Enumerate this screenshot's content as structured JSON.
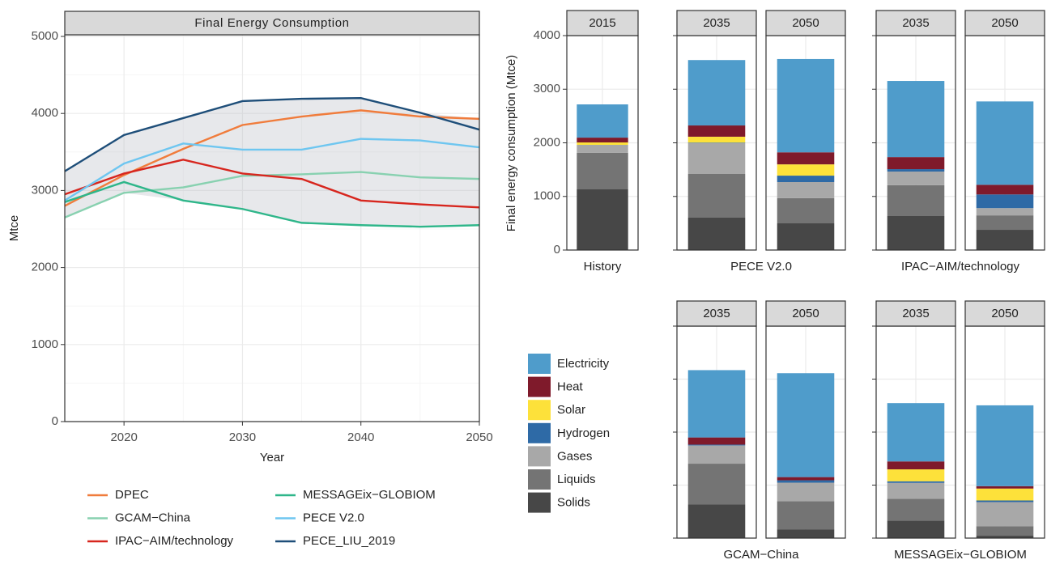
{
  "chart_data": [
    {
      "type": "line",
      "title": "Final Energy Consumption",
      "xlabel": "Year",
      "ylabel": "Mtce",
      "x": [
        2015,
        2020,
        2025,
        2030,
        2035,
        2040,
        2045,
        2050
      ],
      "xlim": [
        2015,
        2050
      ],
      "xticks": [
        2020,
        2030,
        2040,
        2050
      ],
      "ylim": [
        0,
        5000
      ],
      "yticks": [
        0,
        1000,
        2000,
        3000,
        4000,
        5000
      ],
      "grid": true,
      "ribbon": true,
      "series": [
        {
          "name": "DPEC",
          "color": "#f07c3c",
          "values": [
            2800,
            3200,
            3540,
            3850,
            3960,
            4040,
            3960,
            3930
          ]
        },
        {
          "name": "GCAM−China",
          "color": "#88d1b0",
          "values": [
            2650,
            2970,
            3040,
            3190,
            3210,
            3240,
            3170,
            3150
          ]
        },
        {
          "name": "IPAC−AIM/technology",
          "color": "#d7261e",
          "values": [
            2950,
            3220,
            3400,
            3220,
            3150,
            2870,
            2820,
            2780
          ]
        },
        {
          "name": "MESSAGEix−GLOBIOM",
          "color": "#2fb68a",
          "values": [
            2850,
            3110,
            2870,
            2760,
            2580,
            2550,
            2530,
            2550
          ]
        },
        {
          "name": "PECE V2.0",
          "color": "#6ec6f0",
          "values": [
            2870,
            3350,
            3610,
            3530,
            3530,
            3670,
            3650,
            3560
          ]
        },
        {
          "name": "PECE_LIU_2019",
          "color": "#1e4e79",
          "values": [
            3250,
            3720,
            3940,
            4160,
            4190,
            4200,
            4010,
            3790
          ]
        }
      ]
    },
    {
      "type": "bar",
      "stacked": true,
      "ylabel": "Final energy consumption (Mtce)",
      "ylim": [
        0,
        4000
      ],
      "yticks": [
        0,
        1000,
        2000,
        3000,
        4000
      ],
      "grid": true,
      "groups": [
        {
          "name": "History",
          "years": [
            "2015"
          ]
        },
        {
          "name": "PECE V2.0",
          "years": [
            "2035",
            "2050"
          ]
        },
        {
          "name": "IPAC−AIM/technology",
          "years": [
            "2035",
            "2050"
          ]
        },
        {
          "name": "GCAM−China",
          "years": [
            "2035",
            "2050"
          ]
        },
        {
          "name": "MESSAGEix−GLOBIOM",
          "years": [
            "2035",
            "2050"
          ]
        }
      ],
      "series": [
        {
          "name": "Solids",
          "color": "#474747",
          "values": [
            1132,
            604,
            498,
            634,
            377,
            634,
            166,
            332,
            45
          ]
        },
        {
          "name": "Liquids",
          "color": "#747474",
          "values": [
            680,
            815,
            470,
            575,
            270,
            770,
            530,
            410,
            180
          ]
        },
        {
          "name": "Gases",
          "color": "#a8a8a8",
          "values": [
            150,
            575,
            300,
            255,
            135,
            345,
            350,
            300,
            455
          ]
        },
        {
          "name": "Hydrogen",
          "color": "#2e6aa6",
          "values": [
            0,
            10,
            120,
            45,
            255,
            15,
            45,
            30,
            30
          ]
        },
        {
          "name": "Solar",
          "color": "#fde13a",
          "values": [
            45,
            110,
            210,
            0,
            0,
            0,
            0,
            225,
            225
          ]
        },
        {
          "name": "Heat",
          "color": "#7f1a2b",
          "values": [
            90,
            210,
            225,
            225,
            180,
            135,
            60,
            150,
            45
          ]
        },
        {
          "name": "Electricity",
          "color": "#4f9ccb",
          "values": [
            620,
            1220,
            1740,
            1420,
            1555,
            1270,
            1960,
            1100,
            1525
          ]
        }
      ]
    }
  ]
}
